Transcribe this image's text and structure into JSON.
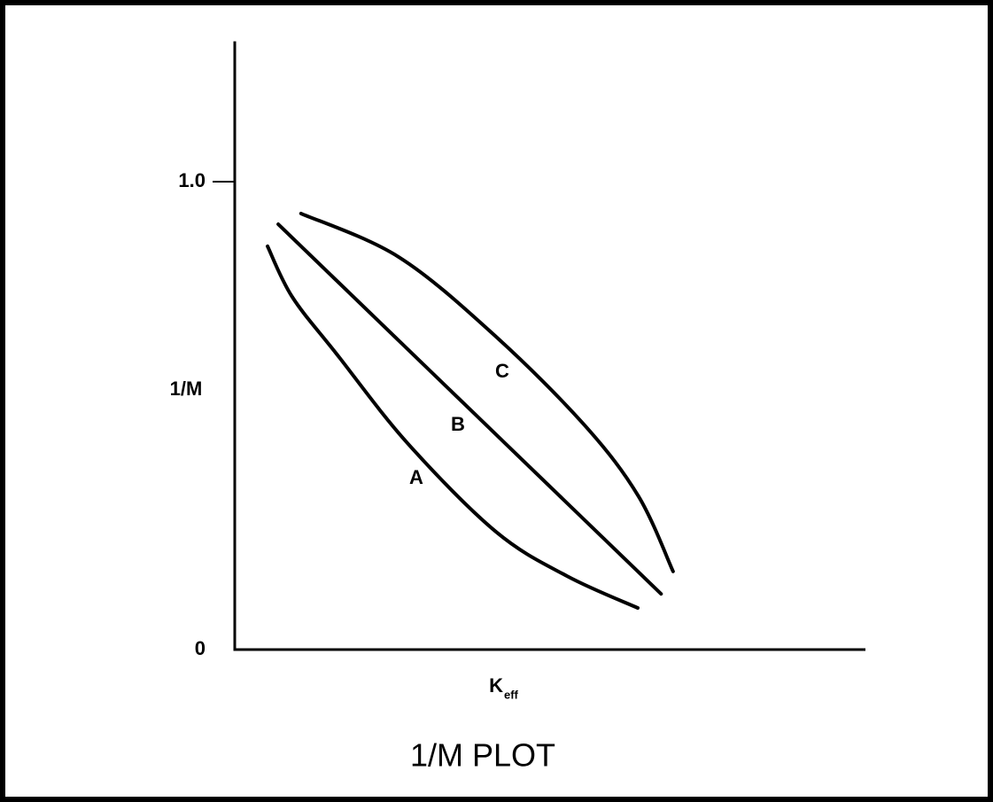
{
  "chart_data": {
    "type": "line",
    "title": "1/M PLOT",
    "x_label": "K",
    "x_label_sub": "eff",
    "y_label": "1/M",
    "xlim": [
      0,
      1
    ],
    "ylim": [
      0,
      1.3
    ],
    "yticks": [
      0,
      {
        "value": 1,
        "label": "1.0"
      }
    ],
    "series": [
      {
        "name": "A",
        "color": "#000000",
        "x": [
          0.052,
          0.091,
          0.162,
          0.274,
          0.414,
          0.527,
          0.639
        ],
        "values": [
          0.862,
          0.754,
          0.631,
          0.441,
          0.252,
          0.157,
          0.089
        ]
      },
      {
        "name": "B",
        "color": "#000000",
        "x": [
          0.069,
          0.676
        ],
        "values": [
          0.909,
          0.119
        ]
      },
      {
        "name": "C",
        "color": "#000000",
        "x": [
          0.105,
          0.26,
          0.414,
          0.555,
          0.64,
          0.695
        ],
        "values": [
          0.932,
          0.839,
          0.669,
          0.479,
          0.328,
          0.167
        ]
      }
    ]
  }
}
